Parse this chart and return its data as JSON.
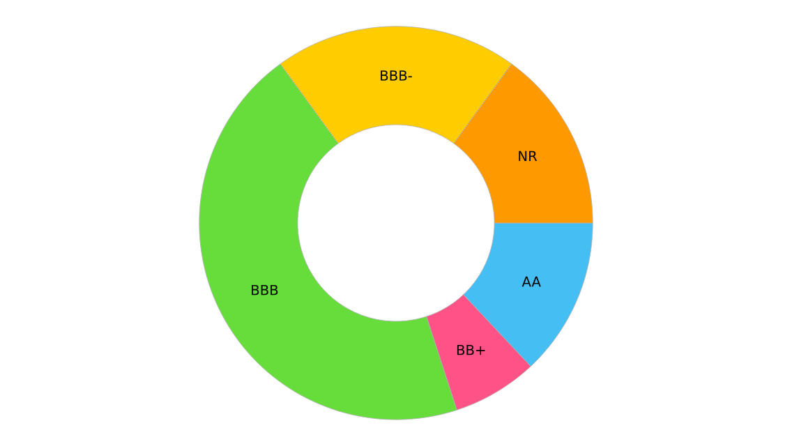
{
  "chart_data": {
    "type": "donut",
    "categories": [
      "AA",
      "BB+",
      "BBB",
      "BBB-",
      "NR"
    ],
    "values": [
      13,
      7,
      45,
      20,
      15
    ],
    "colors": [
      "#44bef3",
      "#ff5286",
      "#66dd3b",
      "#ffcc00",
      "#ff9900"
    ]
  }
}
